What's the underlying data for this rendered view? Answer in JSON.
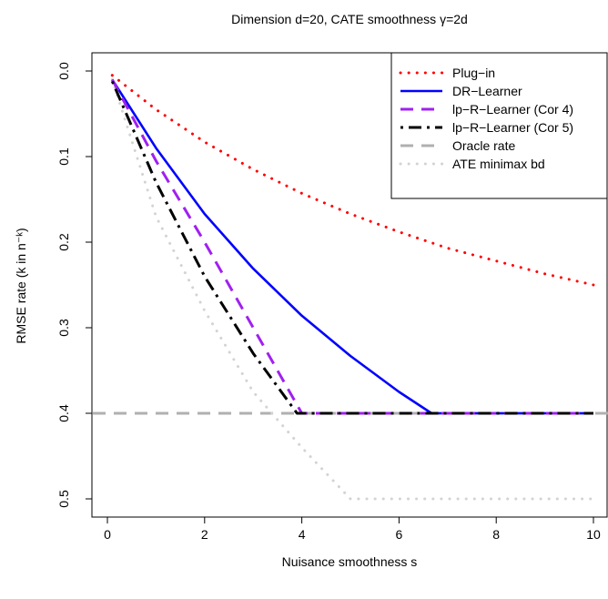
{
  "chart_data": {
    "type": "line",
    "title": "Dimension d=20, CATE smoothness γ=2d",
    "xlabel": "Nuisance smoothness s",
    "ylabel": "RMSE rate (k in n⁻ᵏ)",
    "xlim": [
      0,
      10
    ],
    "ylim": [
      0.5,
      0
    ],
    "y_reversed": true,
    "xticks": [
      "0",
      "2",
      "4",
      "6",
      "8",
      "10"
    ],
    "yticks": [
      "0.0",
      "0.1",
      "0.2",
      "0.3",
      "0.4",
      "0.5"
    ],
    "grid": false,
    "legend_position": "top-right",
    "series": [
      {
        "name": "Plug−in",
        "color": "#ff0000",
        "style": "dotted",
        "x": [
          0.1,
          1,
          2,
          3,
          4,
          5,
          6,
          7,
          8,
          9,
          10
        ],
        "y": [
          0.005,
          0.045,
          0.083,
          0.115,
          0.143,
          0.167,
          0.188,
          0.207,
          0.222,
          0.237,
          0.25
        ]
      },
      {
        "name": "DR−Learner",
        "color": "#0000ff",
        "style": "solid",
        "x": [
          0.1,
          1,
          2,
          3,
          4,
          5,
          6,
          6.67,
          8,
          10
        ],
        "y": [
          0.01,
          0.09,
          0.167,
          0.231,
          0.286,
          0.333,
          0.375,
          0.4,
          0.4,
          0.4
        ]
      },
      {
        "name": "lp−R−Learner (Cor 4)",
        "color": "#a020f0",
        "style": "dashed",
        "x": [
          0.1,
          1,
          2,
          3,
          4,
          4.5,
          6,
          8,
          10
        ],
        "y": [
          0.01,
          0.105,
          0.2,
          0.3,
          0.4,
          0.4,
          0.4,
          0.4,
          0.4
        ]
      },
      {
        "name": "lp−R−Learner (Cor 5)",
        "color": "#000000",
        "style": "dotdash",
        "x": [
          0.1,
          1,
          2,
          3,
          3.9,
          4.5,
          6,
          8,
          10
        ],
        "y": [
          0.012,
          0.13,
          0.24,
          0.33,
          0.4,
          0.4,
          0.4,
          0.4,
          0.4
        ]
      },
      {
        "name": "Oracle rate",
        "color": "#b0b0b0",
        "style": "dashed",
        "x": [
          -0.3,
          10.3
        ],
        "y": [
          0.4,
          0.4
        ]
      },
      {
        "name": "ATE minimax bd",
        "color": "#d3d3d3",
        "style": "dotted",
        "x": [
          0.1,
          1,
          2,
          3,
          4,
          5,
          6,
          8,
          10
        ],
        "y": [
          0.01,
          0.17,
          0.28,
          0.375,
          0.44,
          0.5,
          0.5,
          0.5,
          0.5
        ]
      }
    ]
  }
}
